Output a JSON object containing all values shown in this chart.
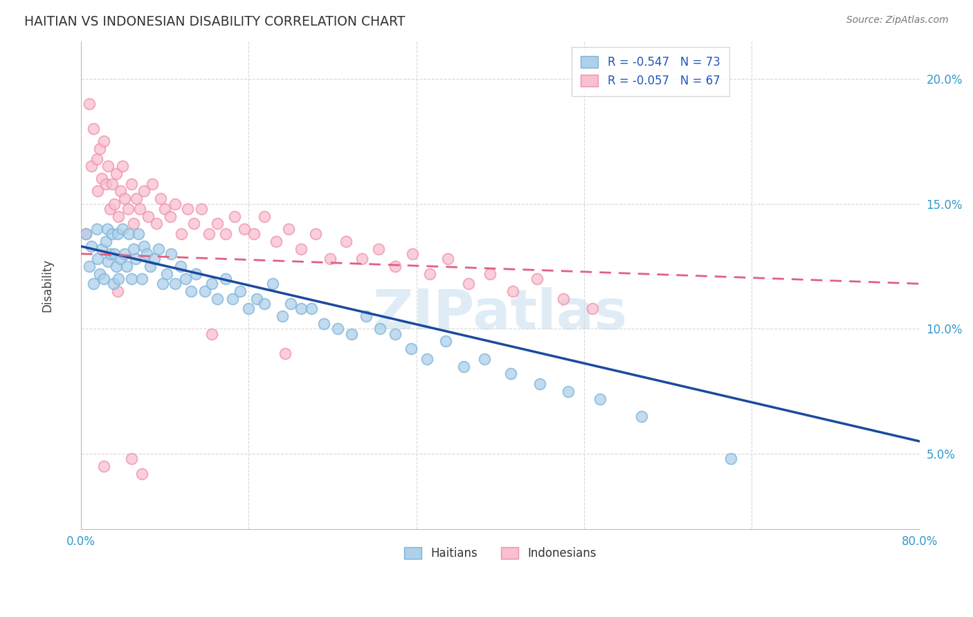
{
  "title": "HAITIAN VS INDONESIAN DISABILITY CORRELATION CHART",
  "source": "Source: ZipAtlas.com",
  "ylabel": "Disability",
  "xlim": [
    0.0,
    0.8
  ],
  "ylim": [
    0.02,
    0.215
  ],
  "yticks": [
    0.05,
    0.1,
    0.15,
    0.2
  ],
  "ytick_labels": [
    "5.0%",
    "10.0%",
    "15.0%",
    "20.0%"
  ],
  "xticks": [
    0.0,
    0.16,
    0.32,
    0.48,
    0.64,
    0.8
  ],
  "haitian_color_edge": "#7ab3d9",
  "haitian_color_fill": "#aed0ea",
  "indonesian_color_edge": "#f090a8",
  "indonesian_color_fill": "#f8c0d0",
  "regression_blue": "#1a4a9e",
  "regression_pink": "#e06080",
  "haitian_R": -0.547,
  "haitian_N": 73,
  "indonesian_R": -0.057,
  "indonesian_N": 67,
  "watermark": "ZIPatlas",
  "background_color": "#ffffff",
  "grid_color": "#d8d8d8",
  "haitian_x": [
    0.005,
    0.008,
    0.01,
    0.012,
    0.015,
    0.016,
    0.018,
    0.02,
    0.022,
    0.024,
    0.025,
    0.026,
    0.028,
    0.03,
    0.031,
    0.032,
    0.034,
    0.035,
    0.036,
    0.038,
    0.04,
    0.042,
    0.044,
    0.046,
    0.048,
    0.05,
    0.052,
    0.055,
    0.058,
    0.06,
    0.063,
    0.066,
    0.07,
    0.074,
    0.078,
    0.082,
    0.086,
    0.09,
    0.095,
    0.1,
    0.105,
    0.11,
    0.118,
    0.125,
    0.13,
    0.138,
    0.145,
    0.152,
    0.16,
    0.168,
    0.175,
    0.183,
    0.192,
    0.2,
    0.21,
    0.22,
    0.232,
    0.245,
    0.258,
    0.272,
    0.285,
    0.3,
    0.315,
    0.33,
    0.348,
    0.365,
    0.385,
    0.41,
    0.438,
    0.465,
    0.495,
    0.535,
    0.62
  ],
  "haitian_y": [
    0.138,
    0.125,
    0.133,
    0.118,
    0.14,
    0.128,
    0.122,
    0.132,
    0.12,
    0.135,
    0.14,
    0.127,
    0.13,
    0.138,
    0.118,
    0.13,
    0.125,
    0.138,
    0.12,
    0.128,
    0.14,
    0.13,
    0.125,
    0.138,
    0.12,
    0.132,
    0.128,
    0.138,
    0.12,
    0.133,
    0.13,
    0.125,
    0.128,
    0.132,
    0.118,
    0.122,
    0.13,
    0.118,
    0.125,
    0.12,
    0.115,
    0.122,
    0.115,
    0.118,
    0.112,
    0.12,
    0.112,
    0.115,
    0.108,
    0.112,
    0.11,
    0.118,
    0.105,
    0.11,
    0.108,
    0.108,
    0.102,
    0.1,
    0.098,
    0.105,
    0.1,
    0.098,
    0.092,
    0.088,
    0.095,
    0.085,
    0.088,
    0.082,
    0.078,
    0.075,
    0.072,
    0.065,
    0.048
  ],
  "indonesian_x": [
    0.005,
    0.008,
    0.01,
    0.012,
    0.015,
    0.016,
    0.018,
    0.02,
    0.022,
    0.024,
    0.026,
    0.028,
    0.03,
    0.032,
    0.034,
    0.036,
    0.038,
    0.04,
    0.042,
    0.045,
    0.048,
    0.05,
    0.053,
    0.056,
    0.06,
    0.064,
    0.068,
    0.072,
    0.076,
    0.08,
    0.085,
    0.09,
    0.096,
    0.102,
    0.108,
    0.115,
    0.122,
    0.13,
    0.138,
    0.147,
    0.156,
    0.165,
    0.175,
    0.186,
    0.198,
    0.21,
    0.224,
    0.238,
    0.253,
    0.268,
    0.284,
    0.3,
    0.316,
    0.333,
    0.35,
    0.37,
    0.39,
    0.412,
    0.435,
    0.46,
    0.488,
    0.195,
    0.125,
    0.048,
    0.058,
    0.035,
    0.022
  ],
  "indonesian_y": [
    0.138,
    0.19,
    0.165,
    0.18,
    0.168,
    0.155,
    0.172,
    0.16,
    0.175,
    0.158,
    0.165,
    0.148,
    0.158,
    0.15,
    0.162,
    0.145,
    0.155,
    0.165,
    0.152,
    0.148,
    0.158,
    0.142,
    0.152,
    0.148,
    0.155,
    0.145,
    0.158,
    0.142,
    0.152,
    0.148,
    0.145,
    0.15,
    0.138,
    0.148,
    0.142,
    0.148,
    0.138,
    0.142,
    0.138,
    0.145,
    0.14,
    0.138,
    0.145,
    0.135,
    0.14,
    0.132,
    0.138,
    0.128,
    0.135,
    0.128,
    0.132,
    0.125,
    0.13,
    0.122,
    0.128,
    0.118,
    0.122,
    0.115,
    0.12,
    0.112,
    0.108,
    0.09,
    0.098,
    0.048,
    0.042,
    0.115,
    0.045
  ]
}
